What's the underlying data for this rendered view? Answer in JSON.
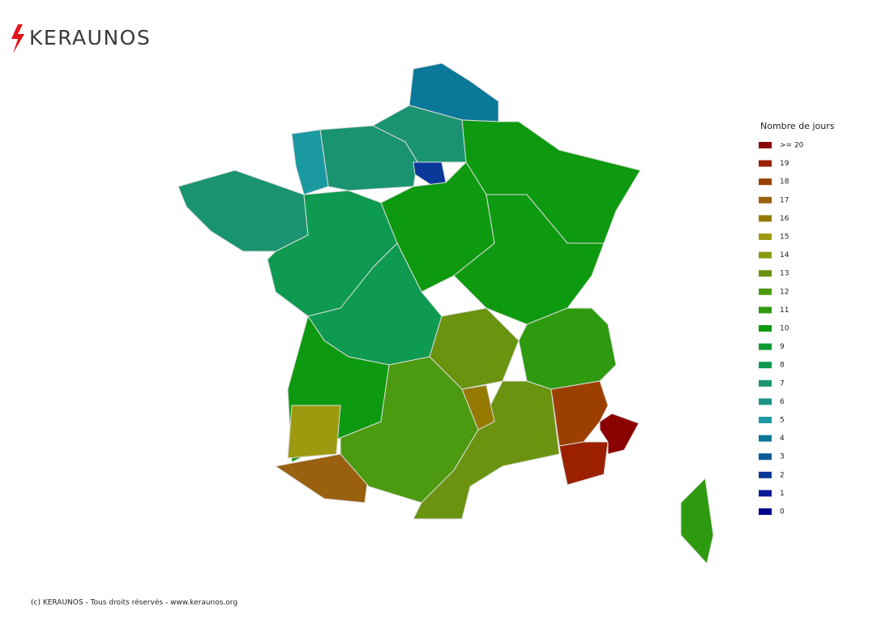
{
  "header": {
    "logo": "KERAUNOS"
  },
  "legend": {
    "title": "Nombre de jours",
    "values": [
      20,
      19,
      18,
      17,
      16,
      15,
      14,
      13,
      12,
      11,
      10,
      9,
      8,
      7,
      6,
      5,
      4,
      3,
      2,
      1,
      0
    ],
    "value_labels": [
      ">= 20",
      "19",
      "18",
      "17",
      "16",
      "15",
      "14",
      "13",
      "12",
      "11",
      "10",
      "9",
      "8",
      "7",
      "6",
      "5",
      "4",
      "3",
      "2",
      "1",
      "0"
    ],
    "colors": [
      "#8b0000",
      "#9b2000",
      "#9c4000",
      "#996010",
      "#947a00",
      "#9e9a10",
      "#8a9a10",
      "#6a9410",
      "#4c9a10",
      "#2e9a10",
      "#0e9a10",
      "#0e9a30",
      "#0e9a50",
      "#1a9470",
      "#1a9488",
      "#1a9aa0",
      "#0a7898",
      "#0a5a98",
      "#0a3898",
      "#0a1a98",
      "#00008b"
    ]
  },
  "map": {
    "values": [
      4,
      7,
      5,
      7,
      2,
      7,
      8,
      10,
      10,
      10,
      8,
      13,
      11,
      10,
      15,
      17,
      12,
      13,
      18,
      19,
      20,
      16,
      11
    ]
  },
  "footer": {
    "text": "(c) KERAUNOS - Tous droits réservés - www.keraunos.org"
  }
}
